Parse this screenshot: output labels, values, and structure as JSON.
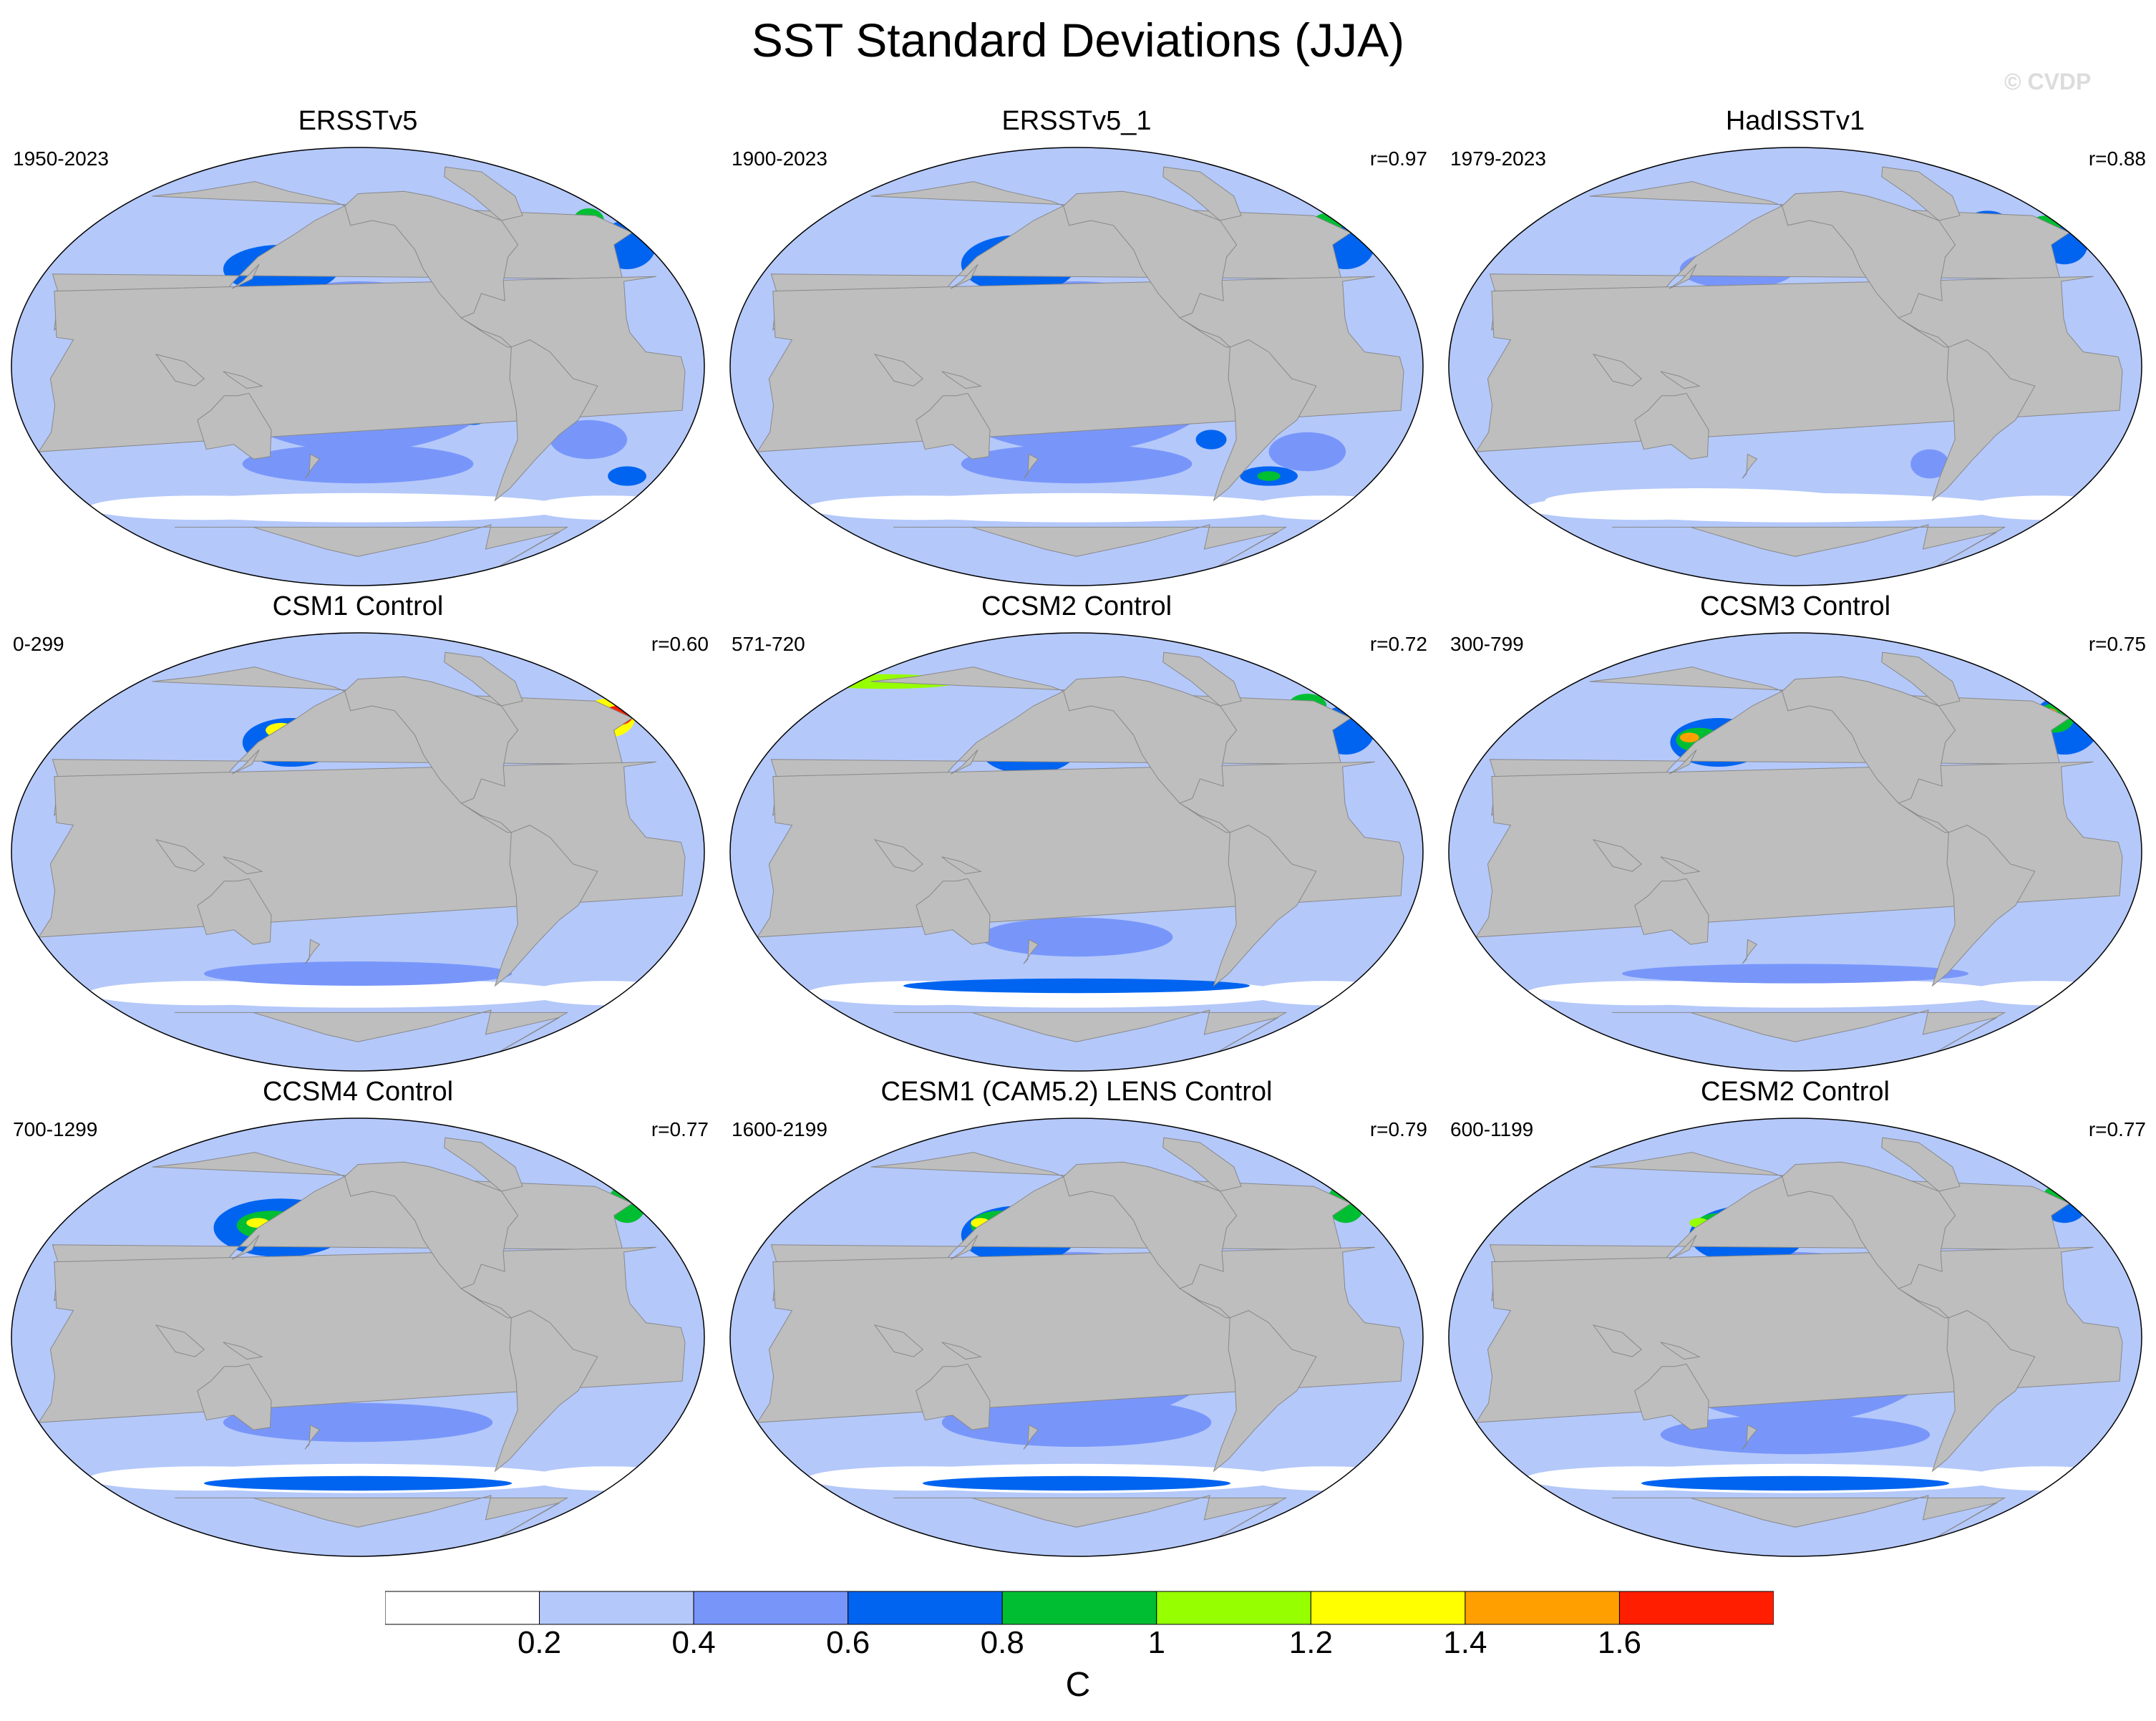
{
  "title": "SST Standard Deviations (JJA)",
  "watermark": "© CVDP",
  "colorbar": {
    "colors": [
      "#ffffff",
      "#b4c8fa",
      "#7896fa",
      "#0064f0",
      "#00be32",
      "#96ff00",
      "#ffff00",
      "#ffa000",
      "#ff1e00"
    ],
    "labels": [
      "0.2",
      "0.4",
      "0.6",
      "0.8",
      "1",
      "1.2",
      "1.4",
      "1.6"
    ],
    "unit": "C"
  },
  "colors": {
    "land": "#bebebe",
    "ocean_base": "#b4c8fa"
  },
  "panels": [
    {
      "id": "ersstv5",
      "title": "ERSSTv5",
      "period": "1950-2023",
      "corr": ""
    },
    {
      "id": "ersstv5_1",
      "title": "ERSSTv5_1",
      "period": "1900-2023",
      "corr": "r=0.97"
    },
    {
      "id": "hadisstv1",
      "title": "HadISSTv1",
      "period": "1979-2023",
      "corr": "r=0.88"
    },
    {
      "id": "csm1",
      "title": "CSM1 Control",
      "period": "0-299",
      "corr": "r=0.60"
    },
    {
      "id": "ccsm2",
      "title": "CCSM2 Control",
      "period": "571-720",
      "corr": "r=0.72"
    },
    {
      "id": "ccsm3",
      "title": "CCSM3 Control",
      "period": "300-799",
      "corr": "r=0.75"
    },
    {
      "id": "ccsm4",
      "title": "CCSM4 Control",
      "period": "700-1299",
      "corr": "r=0.77"
    },
    {
      "id": "cesm1",
      "title": "CESM1 (CAM5.2) LENS Control",
      "period": "1600-2199",
      "corr": "r=0.79"
    },
    {
      "id": "cesm2",
      "title": "CESM2 Control",
      "period": "600-1199",
      "corr": "r=0.77"
    }
  ]
}
